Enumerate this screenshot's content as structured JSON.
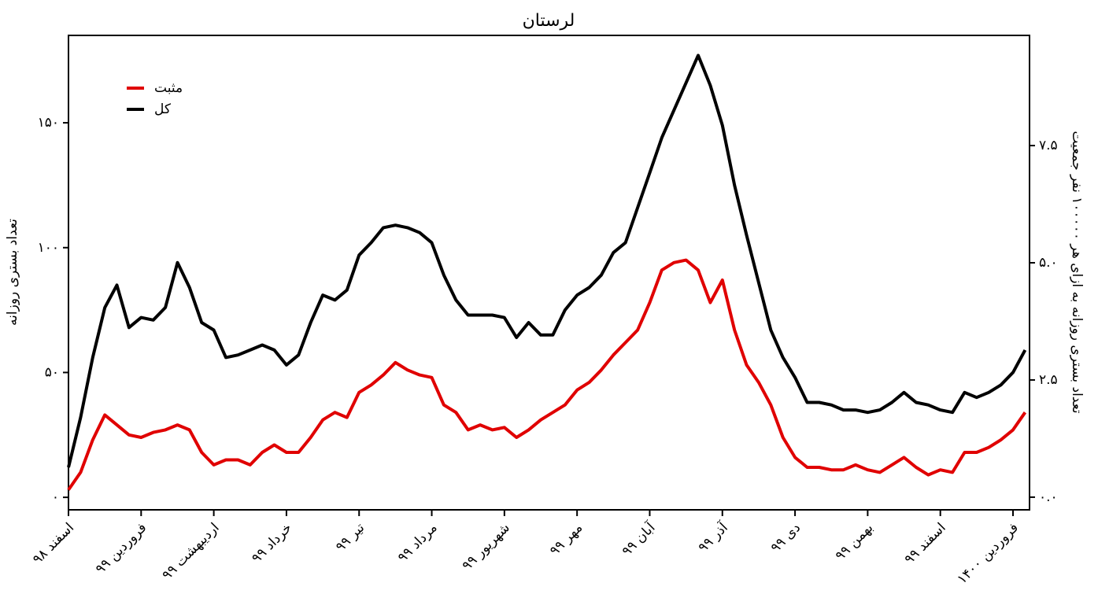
{
  "chart_data": {
    "type": "line",
    "title": "لرستان",
    "ylabel": "تعداد بستری روزانه",
    "y2label": "تعداد بستری روزانه به ازای هر ۱۰۰۰۰۰ نفر جمعیت",
    "categories": [
      "اسفند ۹۸",
      null,
      null,
      null,
      null,
      null,
      "فروردین ۹۹",
      null,
      null,
      null,
      null,
      null,
      "اردیبهشت ۹۹",
      null,
      null,
      null,
      null,
      null,
      "خرداد ۹۹",
      null,
      null,
      null,
      null,
      null,
      "تیر ۹۹",
      null,
      null,
      null,
      null,
      null,
      "مرداد ۹۹",
      null,
      null,
      null,
      null,
      null,
      "شهریور ۹۹",
      null,
      null,
      null,
      null,
      null,
      "مهر ۹۹",
      null,
      null,
      null,
      null,
      null,
      "آبان ۹۹",
      null,
      null,
      null,
      null,
      null,
      "آذر ۹۹",
      null,
      null,
      null,
      null,
      null,
      "دی ۹۹",
      null,
      null,
      null,
      null,
      null,
      "بهمن ۹۹",
      null,
      null,
      null,
      null,
      null,
      "اسفند ۹۹",
      null,
      null,
      null,
      null,
      null,
      "فروردین ۱۴۰۰",
      null
    ],
    "series": [
      {
        "name": "مثبت",
        "color": "#e00000",
        "values": [
          3,
          10,
          23,
          33,
          29,
          25,
          24,
          26,
          27,
          29,
          27,
          18,
          13,
          15,
          15,
          13,
          18,
          21,
          18,
          18,
          24,
          31,
          34,
          32,
          42,
          45,
          49,
          54,
          51,
          49,
          48,
          37,
          34,
          27,
          29,
          27,
          28,
          24,
          27,
          31,
          34,
          37,
          43,
          46,
          51,
          57,
          62,
          67,
          78,
          91,
          94,
          95,
          91,
          78,
          87,
          67,
          53,
          46,
          37,
          24,
          16,
          12,
          12,
          11,
          11,
          13,
          11,
          10,
          13,
          16,
          12,
          9,
          11,
          10,
          18,
          18,
          20,
          23,
          27,
          34
        ]
      },
      {
        "name": "کل",
        "color": "#000000",
        "values": [
          12,
          32,
          56,
          76,
          85,
          68,
          72,
          71,
          76,
          94,
          84,
          70,
          67,
          56,
          57,
          59,
          61,
          59,
          53,
          57,
          70,
          81,
          79,
          83,
          97,
          102,
          108,
          109,
          108,
          106,
          102,
          89,
          79,
          73,
          73,
          73,
          72,
          64,
          70,
          65,
          65,
          75,
          81,
          84,
          89,
          98,
          102,
          116,
          130,
          144,
          155,
          166,
          177,
          165,
          149,
          125,
          105,
          86,
          67,
          56,
          48,
          38,
          38,
          37,
          35,
          35,
          34,
          35,
          38,
          42,
          38,
          37,
          35,
          34,
          42,
          40,
          42,
          45,
          50,
          59
        ]
      }
    ],
    "ylim": [
      -5,
      185
    ],
    "yticks": [
      {
        "value": 0,
        "label": "۰"
      },
      {
        "value": 50,
        "label": "۵۰"
      },
      {
        "value": 100,
        "label": "۱۰۰"
      },
      {
        "value": 150,
        "label": "۱۵۰"
      }
    ],
    "y2lim": [
      -0.27,
      9.85
    ],
    "y2ticks": [
      {
        "value": 0,
        "label": "۰.۰"
      },
      {
        "value": 2.5,
        "label": "۲.۵"
      },
      {
        "value": 5,
        "label": "۵.۰"
      },
      {
        "value": 7.5,
        "label": "۷.۵"
      }
    ],
    "legend": "upper left",
    "grid": false
  }
}
